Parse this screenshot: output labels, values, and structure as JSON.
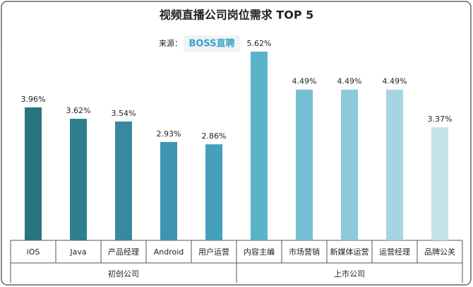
{
  "chart_data": {
    "type": "bar",
    "title": "视频直播公司岗位需求  TOP 5",
    "source_label": "来源：",
    "source": "BOSS直聘",
    "groups": [
      {
        "name": "初创公司",
        "categories": [
          "iOS",
          "Java",
          "产品经理",
          "Android",
          "用户运营"
        ],
        "values": [
          3.96,
          3.62,
          3.54,
          2.93,
          2.86
        ],
        "value_labels": [
          "3.96%",
          "3.62%",
          "3.54%",
          "2.93%",
          "2.86%"
        ],
        "colors": [
          "#2a7480",
          "#2f7f91",
          "#3789a0",
          "#3d95b0",
          "#45a0bb"
        ]
      },
      {
        "name": "上市公司",
        "categories": [
          "内容主编",
          "市场营销",
          "新媒体运营",
          "运营经理",
          "品牌公关"
        ],
        "values": [
          5.62,
          4.49,
          4.49,
          4.49,
          3.37
        ],
        "value_labels": [
          "5.62%",
          "4.49%",
          "4.49%",
          "4.49%",
          "3.37%"
        ],
        "colors": [
          "#5ab3c9",
          "#74c0d2",
          "#8ccad9",
          "#a5d5e2",
          "#c5e2ea"
        ]
      }
    ]
  }
}
